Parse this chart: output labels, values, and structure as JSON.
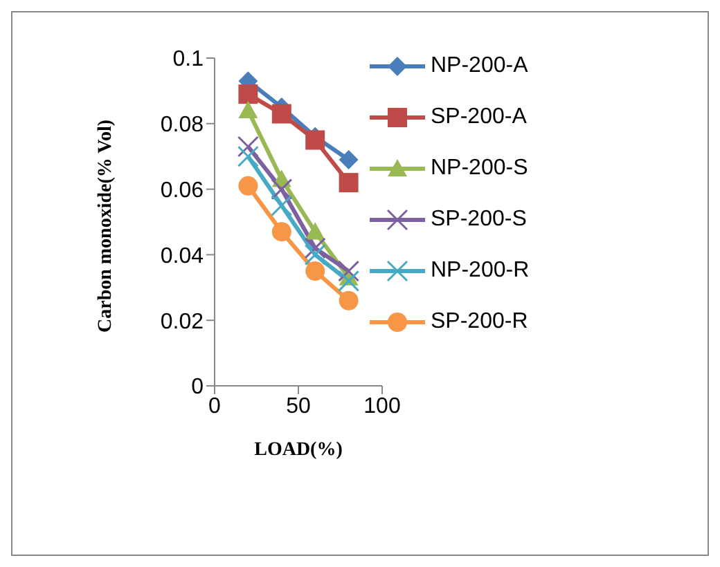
{
  "chart_data": {
    "type": "line",
    "xlabel": "LOAD(%)",
    "ylabel": "Carbon monoxide(% Vol)",
    "x": [
      20,
      40,
      60,
      80
    ],
    "xlim": [
      0,
      100
    ],
    "xticks": [
      0,
      50,
      100
    ],
    "ylim": [
      0,
      0.1
    ],
    "yticks": [
      0,
      0.02,
      0.04,
      0.06,
      0.08,
      0.1
    ],
    "grid": false,
    "legend": "right",
    "series": [
      {
        "name": "NP-200-A",
        "color": "#4a7ebb",
        "marker": "diamond",
        "values": [
          0.093,
          0.085,
          0.076,
          0.069
        ]
      },
      {
        "name": "SP-200-A",
        "color": "#be4b48",
        "marker": "square",
        "values": [
          0.089,
          0.083,
          0.075,
          0.062
        ]
      },
      {
        "name": "NP-200-S",
        "color": "#98b954",
        "marker": "triangle",
        "values": [
          0.084,
          0.063,
          0.047,
          0.033
        ]
      },
      {
        "name": "SP-200-S",
        "color": "#7d60a0",
        "marker": "cross",
        "values": [
          0.073,
          0.06,
          0.042,
          0.035
        ]
      },
      {
        "name": "NP-200-R",
        "color": "#46aac5",
        "marker": "cross",
        "values": [
          0.07,
          0.055,
          0.04,
          0.032
        ]
      },
      {
        "name": "SP-200-R",
        "color": "#f79646",
        "marker": "circle",
        "values": [
          0.061,
          0.047,
          0.035,
          0.026
        ]
      }
    ]
  }
}
